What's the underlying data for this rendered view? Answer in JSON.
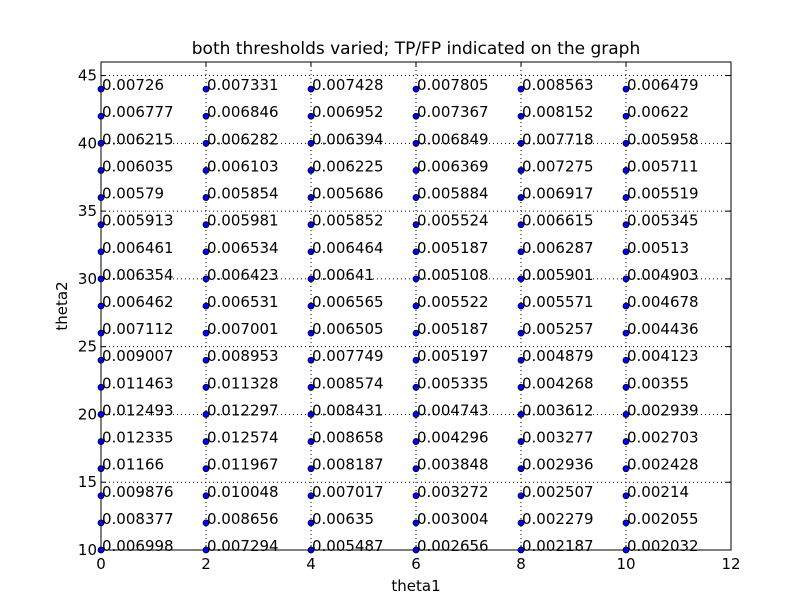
{
  "chart_data": {
    "type": "scatter",
    "title": "both thresholds varied; TP/FP indicated on the graph",
    "xlabel": "theta1",
    "ylabel": "theta2",
    "x": [
      0,
      2,
      4,
      6,
      8,
      10
    ],
    "y": [
      10,
      12,
      14,
      16,
      18,
      20,
      22,
      24,
      26,
      28,
      30,
      32,
      34,
      36,
      38,
      40,
      42,
      44
    ],
    "values": [
      [
        0.006998,
        0.008377,
        0.009876,
        0.01166,
        0.012335,
        0.012493,
        0.011463,
        0.009007,
        0.007112,
        0.006462,
        0.006354,
        0.006461,
        0.005913,
        0.00579,
        0.006035,
        0.006215,
        0.006777,
        0.00726
      ],
      [
        0.007294,
        0.008656,
        0.010048,
        0.011967,
        0.012574,
        0.012297,
        0.011328,
        0.008953,
        0.007001,
        0.006531,
        0.006423,
        0.006534,
        0.005981,
        0.005854,
        0.006103,
        0.006282,
        0.006846,
        0.007331
      ],
      [
        0.005487,
        0.00635,
        0.007017,
        0.008187,
        0.008658,
        0.008431,
        0.008574,
        0.007749,
        0.006505,
        0.006565,
        0.00641,
        0.006464,
        0.005852,
        0.005686,
        0.006225,
        0.006394,
        0.006952,
        0.007428
      ],
      [
        0.002656,
        0.003004,
        0.003272,
        0.003848,
        0.004296,
        0.004743,
        0.005335,
        0.005197,
        0.005187,
        0.005522,
        0.005108,
        0.005187,
        0.005524,
        0.005884,
        0.006369,
        0.006849,
        0.007367,
        0.007805
      ],
      [
        0.002187,
        0.002279,
        0.002507,
        0.002936,
        0.003277,
        0.003612,
        0.004268,
        0.004879,
        0.005257,
        0.005571,
        0.005901,
        0.006287,
        0.006615,
        0.006917,
        0.007275,
        0.007718,
        0.008152,
        0.008563
      ],
      [
        0.002032,
        0.002055,
        0.00214,
        0.002428,
        0.002703,
        0.002939,
        0.00355,
        0.004123,
        0.004436,
        0.004678,
        0.004903,
        0.00513,
        0.005345,
        0.005519,
        0.005711,
        0.005958,
        0.00622,
        0.006479
      ]
    ],
    "color": "#0000ff",
    "xlim": [
      0,
      12
    ],
    "xticks": [
      0,
      2,
      4,
      6,
      8,
      10,
      12
    ],
    "ylim": [
      10,
      46
    ],
    "yticks": [
      10,
      15,
      20,
      25,
      30,
      35,
      40,
      45
    ],
    "grid": true
  }
}
